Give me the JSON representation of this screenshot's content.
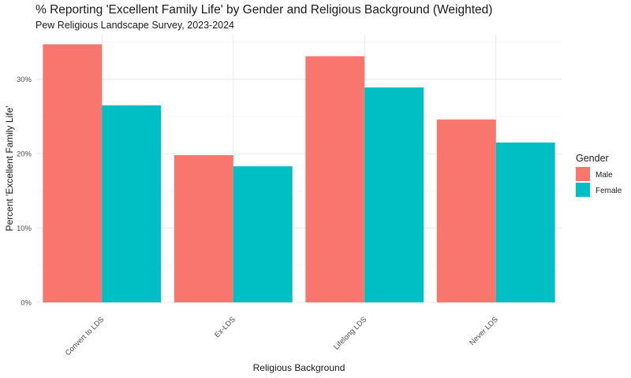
{
  "chart_data": {
    "type": "bar",
    "title": "% Reporting 'Excellent Family Life' by Gender and Religious Background (Weighted)",
    "subtitle": "Pew Religious Landscape Survey, 2023-2024",
    "xlabel": "Religious Background",
    "ylabel": "Percent 'Excellent Family Life'",
    "categories": [
      "Convert to LDS",
      "Ex-LDS",
      "Lifelong LDS",
      "Never LDS"
    ],
    "series": [
      {
        "name": "Male",
        "color": "#F8766D",
        "values": [
          0.347,
          0.198,
          0.331,
          0.246
        ]
      },
      {
        "name": "Female",
        "color": "#00BFC4",
        "values": [
          0.265,
          0.183,
          0.289,
          0.215
        ]
      }
    ],
    "ylim": [
      0,
      0.36
    ],
    "yticks": [
      0,
      0.1,
      0.2,
      0.3
    ],
    "ytick_labels": [
      "0%",
      "10%",
      "20%",
      "30%"
    ],
    "grid": true,
    "legend": {
      "title": "Gender",
      "position": "right"
    }
  }
}
